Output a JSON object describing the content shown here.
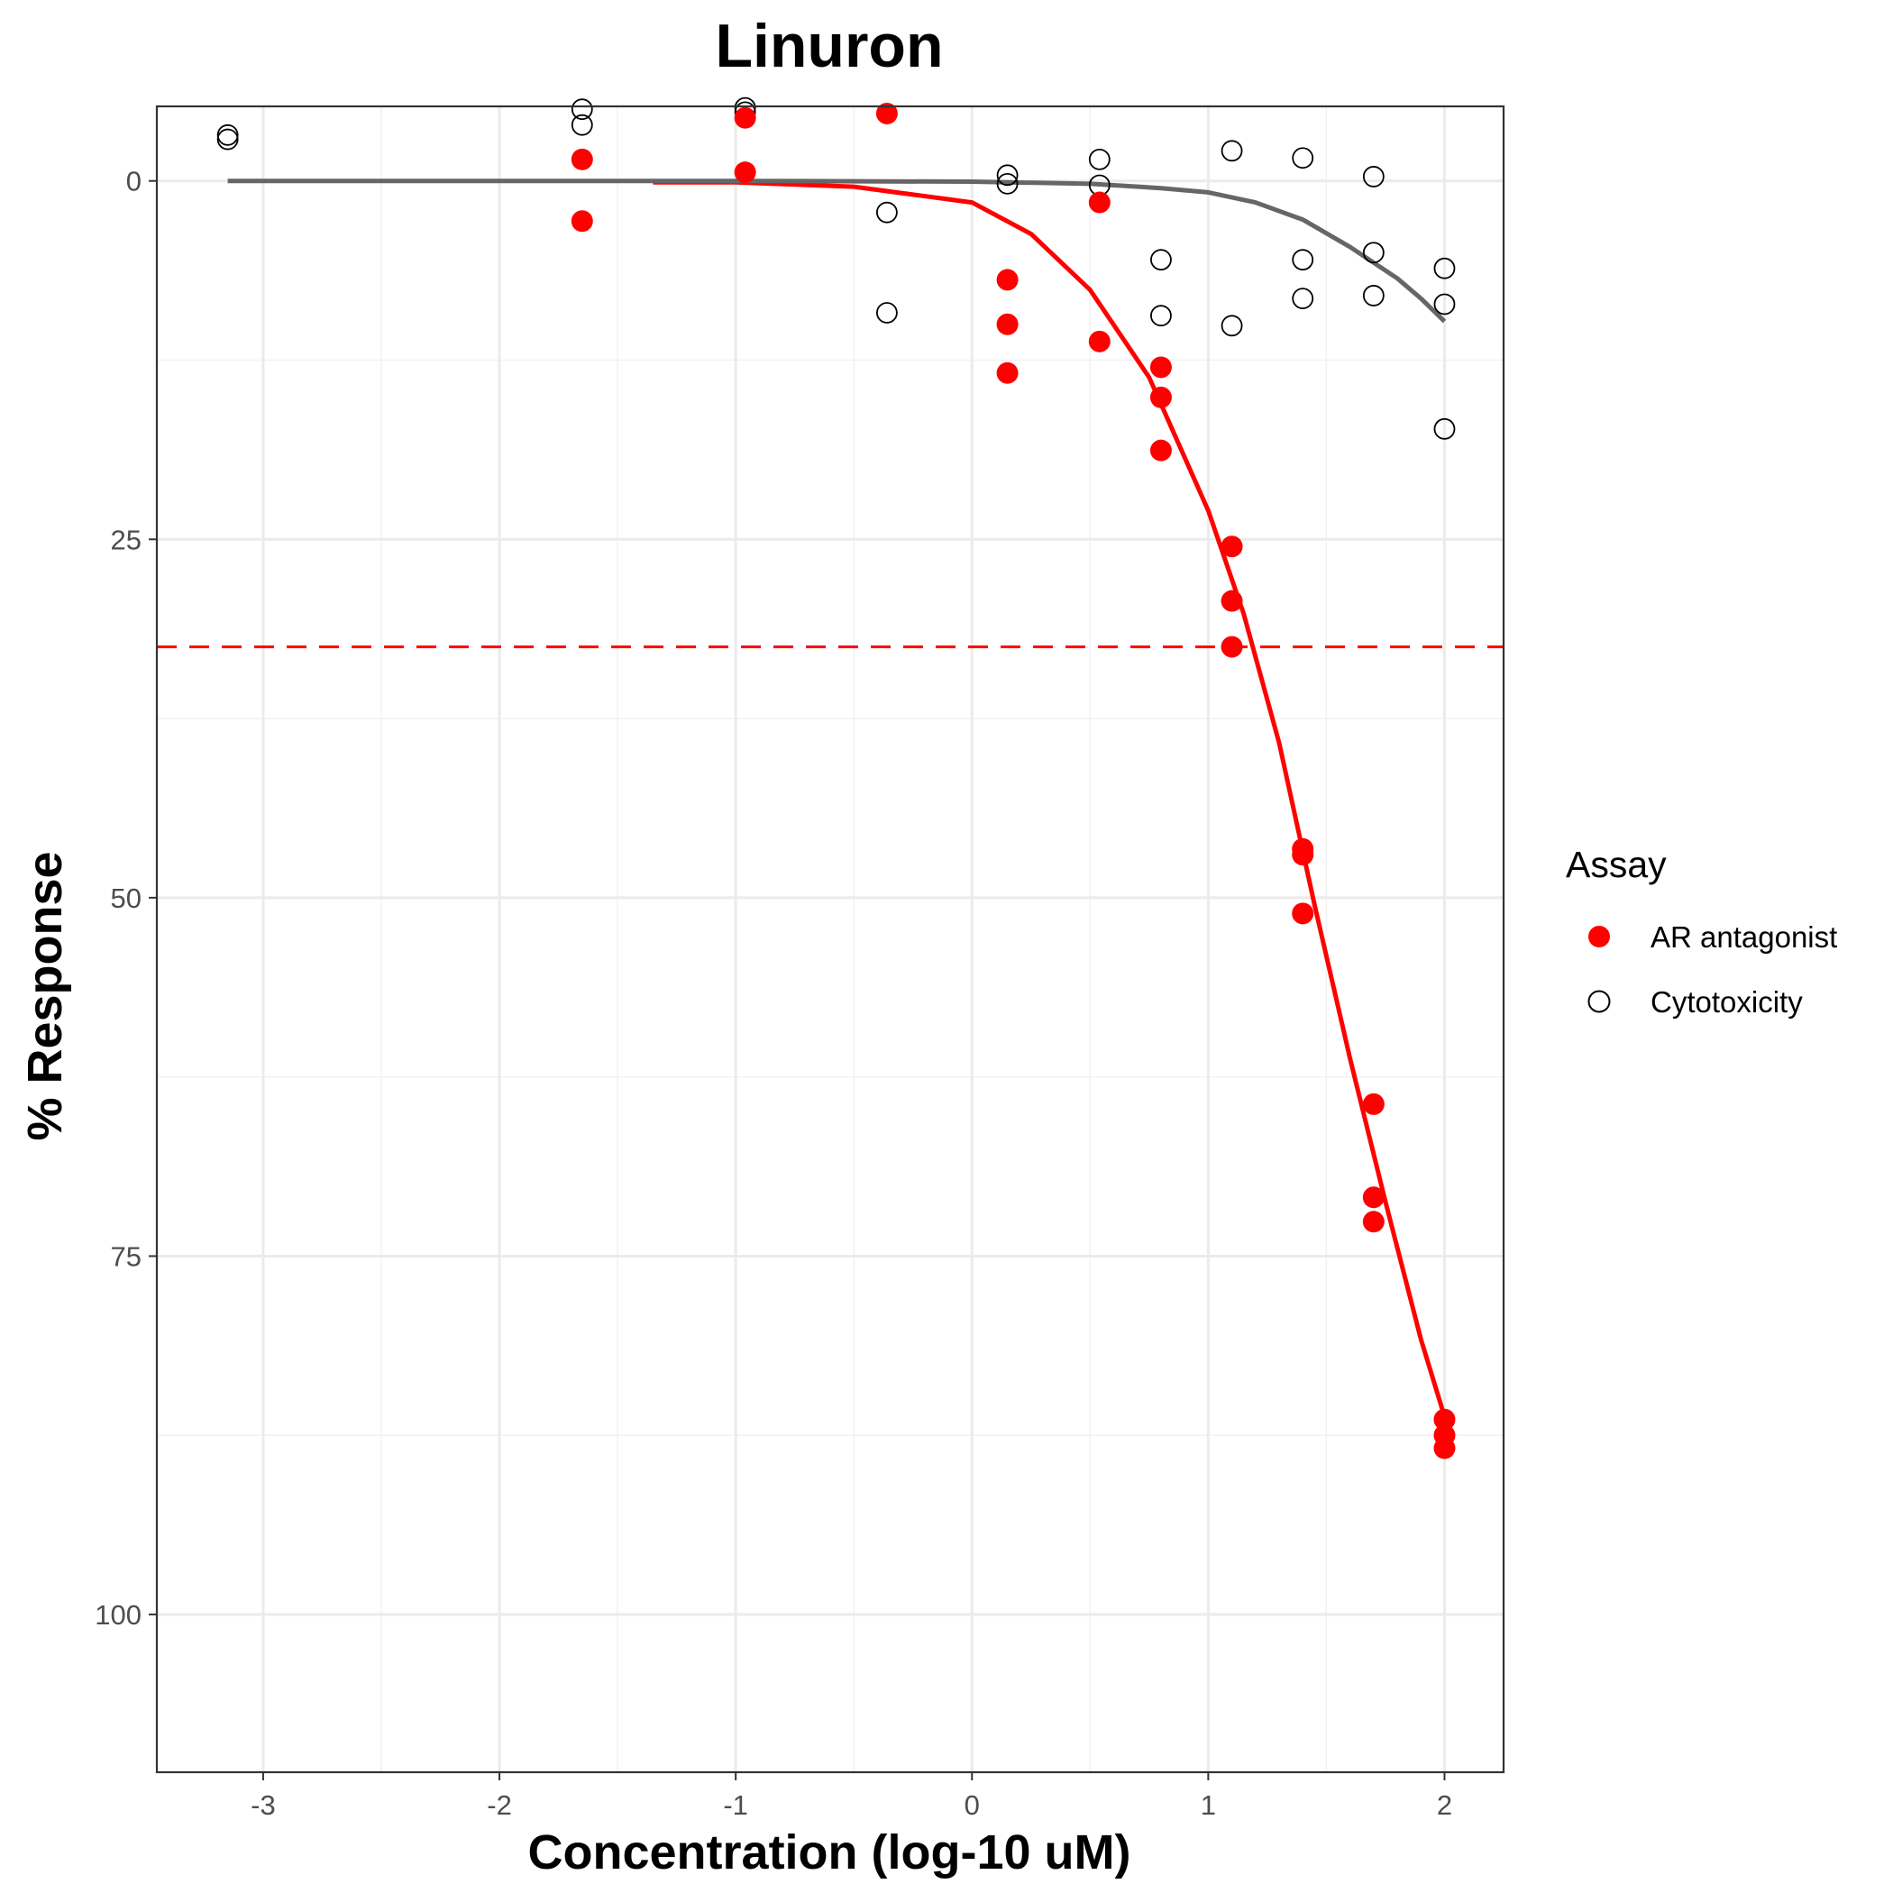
{
  "chart_data": {
    "type": "scatter",
    "title": "Linuron",
    "xlabel": "Concentration (log-10 uM)",
    "ylabel": "% Response",
    "xlim": [
      -3.45,
      2.25
    ],
    "ylim": [
      -5.2,
      111.0
    ],
    "y_reversed": true,
    "x_ticks": [
      -3,
      -2,
      -1,
      0,
      1,
      2
    ],
    "x_tick_labels": [
      "-3",
      "-2",
      "-1",
      "0",
      "1",
      "2"
    ],
    "y_ticks": [
      0,
      25,
      50,
      75,
      100
    ],
    "y_tick_labels": [
      "0",
      "25",
      "50",
      "75",
      "100"
    ],
    "grid": true,
    "legend": {
      "title": "Assay",
      "position": "right"
    },
    "series": [
      {
        "name": "AR antagonist",
        "color": "#ff0000",
        "marker": "filled-circle",
        "points": [
          [
            -1.65,
            -1.5
          ],
          [
            -1.65,
            2.8
          ],
          [
            -0.96,
            -4.4
          ],
          [
            -0.96,
            -0.6
          ],
          [
            -0.36,
            -4.7
          ],
          [
            0.15,
            6.9
          ],
          [
            0.15,
            10.0
          ],
          [
            0.15,
            13.4
          ],
          [
            0.54,
            1.5
          ],
          [
            0.54,
            11.2
          ],
          [
            0.8,
            13.0
          ],
          [
            0.8,
            15.1
          ],
          [
            0.8,
            18.8
          ],
          [
            1.1,
            25.5
          ],
          [
            1.1,
            29.3
          ],
          [
            1.1,
            32.5
          ],
          [
            1.4,
            46.6
          ],
          [
            1.4,
            47.0
          ],
          [
            1.4,
            51.1
          ],
          [
            1.7,
            64.4
          ],
          [
            1.7,
            70.9
          ],
          [
            1.7,
            72.6
          ],
          [
            2.0,
            86.4
          ],
          [
            2.0,
            87.5
          ],
          [
            2.0,
            88.4
          ]
        ],
        "curve": [
          [
            -1.35,
            0.1
          ],
          [
            -1.0,
            0.1
          ],
          [
            -0.5,
            0.4
          ],
          [
            0.0,
            1.5
          ],
          [
            0.25,
            3.7
          ],
          [
            0.5,
            7.6
          ],
          [
            0.75,
            13.7
          ],
          [
            1.0,
            23.0
          ],
          [
            1.15,
            30.2
          ],
          [
            1.3,
            39.2
          ],
          [
            1.45,
            50.5
          ],
          [
            1.6,
            61.2
          ],
          [
            1.75,
            71.2
          ],
          [
            1.9,
            80.8
          ],
          [
            2.0,
            86.2
          ]
        ]
      },
      {
        "name": "Cytotoxicity",
        "color": "#000000",
        "marker": "open-circle",
        "points": [
          [
            -3.15,
            -3.2
          ],
          [
            -3.15,
            -2.9
          ],
          [
            -1.65,
            -5.0
          ],
          [
            -1.65,
            -3.9
          ],
          [
            -0.96,
            -5.1
          ],
          [
            -0.96,
            -4.8
          ],
          [
            -0.36,
            2.2
          ],
          [
            -0.36,
            9.2
          ],
          [
            0.15,
            -0.4
          ],
          [
            0.15,
            0.2
          ],
          [
            0.54,
            -1.5
          ],
          [
            0.54,
            0.3
          ],
          [
            0.8,
            5.5
          ],
          [
            0.8,
            9.4
          ],
          [
            1.1,
            -2.1
          ],
          [
            1.1,
            10.1
          ],
          [
            1.4,
            -1.6
          ],
          [
            1.4,
            5.5
          ],
          [
            1.4,
            8.2
          ],
          [
            1.7,
            -0.3
          ],
          [
            1.7,
            5.0
          ],
          [
            1.7,
            8.0
          ],
          [
            2.0,
            6.1
          ],
          [
            2.0,
            8.6
          ],
          [
            2.0,
            17.3
          ]
        ],
        "curve": [
          [
            -3.15,
            0.0
          ],
          [
            -2.0,
            0.0
          ],
          [
            -1.0,
            0.0
          ],
          [
            0.0,
            0.05
          ],
          [
            0.5,
            0.2
          ],
          [
            0.8,
            0.5
          ],
          [
            1.0,
            0.8
          ],
          [
            1.2,
            1.5
          ],
          [
            1.4,
            2.7
          ],
          [
            1.6,
            4.6
          ],
          [
            1.8,
            6.8
          ],
          [
            1.9,
            8.2
          ],
          [
            2.0,
            9.8
          ]
        ]
      }
    ],
    "reference_line": {
      "orientation": "horizontal",
      "y": 32.5,
      "style": "dashed",
      "color": "#ff0000"
    },
    "curve_colors": {
      "AR antagonist": "#ff0000",
      "Cytotoxicity": "#666666"
    }
  }
}
